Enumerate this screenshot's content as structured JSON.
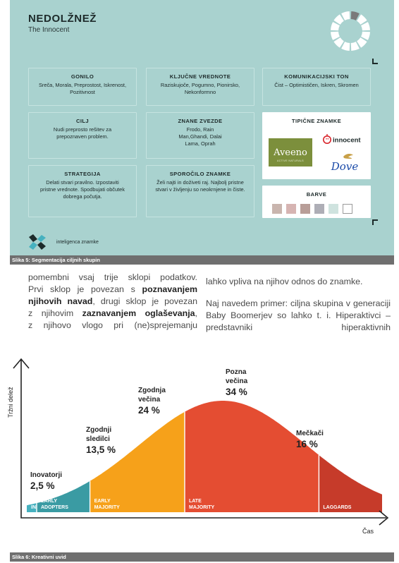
{
  "figure5": {
    "title": "NEDOLŽNEŽ",
    "subtitle": "The Innocent",
    "cards": [
      {
        "title": "GONILO",
        "body": "Sreča, Morala, Preprostost, Iskrenost, Pozitivnost"
      },
      {
        "title": "KLJUČNE VREDNOTE",
        "body": "Raziskujoče, Pogumno, Pionirsko, Nekonformno"
      },
      {
        "title": "KOMUNIKACIJSKI TON",
        "body": "Čist – Optimističen, Iskren, Skromen"
      },
      {
        "title": "CILJ",
        "body": "Nudi preprosto rešitev za prepoznaven problem."
      },
      {
        "title": "ZNANE ZVEZDE",
        "body": "Frodo, Rain Man,Ghandi, Dalai Lama, Oprah"
      },
      {
        "title": "STRATEGIJA",
        "body": "Delati stvari pravilno. Izpostaviti pristne vrednote. Spodbujati občutek dobrega počutja."
      },
      {
        "title": "SPOROČILO ZNAMKE",
        "body": "Želi najti in doživeti raj. Najbolj pristne stvari v življenju so neokrnjene in čiste."
      }
    ],
    "brands_title": "TIPIČNE ZNAMKE",
    "brands": [
      "Aveeno",
      "innocent",
      "Dove"
    ],
    "aveeno_tagline": "ACTIVE NATURALS",
    "colors_title": "BARVE",
    "colors": [
      "#c9b5ae",
      "#d6b4b2",
      "#b89e98",
      "#aeaeb6",
      "#cfe3df",
      "#ffffff"
    ],
    "logo_text": "inteligenca znamke",
    "caption": "Slika 5: Segmentacija ciljnih skupin"
  },
  "text": {
    "col1": [
      {
        "t": "pomembni vsaj trije sklopi podatkov.",
        "b": false
      },
      {
        "t": "Prvi sklop je povezan s ",
        "b": false
      },
      {
        "t": "poznavanjem",
        "b": true
      },
      {
        "t": "njihovih navad",
        "b": true
      },
      {
        "t": ", drugi sklop je povezan",
        "b": false
      },
      {
        "t": "z njihovim ",
        "b": false
      },
      {
        "t": "zaznavanjem oglaševanja",
        "b": true
      },
      {
        "t": ",",
        "b": false
      },
      {
        "t": "z njihovo vlogo pri (ne)sprejemanju",
        "b": false
      }
    ],
    "col2_p1": "lahko vpliva na njihov odnos do znamke.",
    "col2_p2": "Naj navedem primer: ciljna skupina v generaciji Baby Boomerjev so lahko t. i. Hiperaktivci – predstavniki hiperaktivnih"
  },
  "chart_data": {
    "type": "area",
    "ylabel": "Tržni delež",
    "xlabel": "Čas",
    "segments": [
      {
        "band": "INNOVATORS",
        "name": "Inovatorji",
        "value": "2,5 %",
        "share": 2.5,
        "color": "#46b1bf"
      },
      {
        "band": "EARLY ADOPTERS",
        "name": "Zgodnji sledilci",
        "value": "13,5 %",
        "share": 13.5,
        "color": "#3a9ba3"
      },
      {
        "band": "EARLY MAJORITY",
        "name": "Zgodnja večina",
        "value": "24 %",
        "share": 24,
        "color": "#f6a11a"
      },
      {
        "band": "LATE MAJORITY",
        "name": "Pozna večina",
        "value": "34 %",
        "share": 34,
        "color": "#e44d32"
      },
      {
        "band": "LAGGARDS",
        "name": "Mečkači",
        "value": "16 %",
        "share": 16,
        "color": "#c63b2a"
      }
    ],
    "caption": "Slika 6: Kreativni uvid"
  }
}
